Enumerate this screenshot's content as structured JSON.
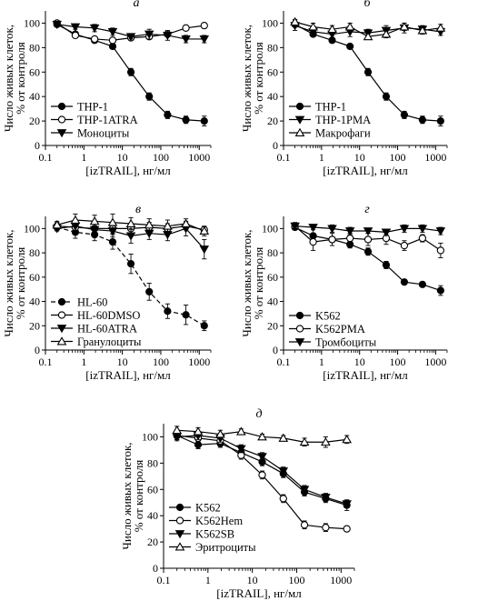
{
  "chart_data": [
    {
      "type": "line",
      "panel_letter": "а",
      "xlabel": "[izTRAIL], нг/мл",
      "ylabel": "Число живых клеток, % от контроля",
      "xscale": "log",
      "xlim": [
        0.1,
        2000
      ],
      "ylim": [
        0,
        110
      ],
      "xticks": [
        "0.1",
        "1",
        "10",
        "100",
        "1000"
      ],
      "yticks": [
        "0",
        "20",
        "40",
        "60",
        "80",
        "100"
      ],
      "legend_position": "bottom-left",
      "x": [
        0.2,
        0.6,
        1.9,
        5.6,
        16.7,
        50,
        150,
        450,
        1350
      ],
      "series": [
        {
          "name": "THP-1",
          "marker": "circle-filled",
          "dashed": false,
          "values": [
            99,
            91,
            86,
            81,
            60,
            40,
            25,
            21,
            20
          ],
          "errors": [
            1.5,
            2,
            2,
            2,
            3,
            3,
            3,
            3,
            4
          ]
        },
        {
          "name": "THP-1ATRA",
          "marker": "circle-open",
          "dashed": false,
          "values": [
            100,
            90,
            87,
            86,
            88,
            89,
            91,
            96,
            98
          ],
          "errors": [
            1,
            1.5,
            1.5,
            1.5,
            2,
            2,
            2,
            1.5,
            1
          ]
        },
        {
          "name": "Моноциты",
          "marker": "triangle-down-filled",
          "dashed": false,
          "values": [
            99,
            97,
            96,
            93,
            89,
            91,
            90,
            87,
            87
          ],
          "errors": [
            1,
            2,
            3,
            3,
            2,
            4,
            4,
            3,
            3
          ]
        }
      ]
    },
    {
      "type": "line",
      "panel_letter": "б",
      "xlabel": "[izTRAIL], нг/мл",
      "ylabel": "Число живых клеток, % от контроля",
      "xscale": "log",
      "xlim": [
        0.1,
        2000
      ],
      "ylim": [
        0,
        110
      ],
      "xticks": [
        "0.1",
        "1",
        "10",
        "100",
        "1000"
      ],
      "yticks": [
        "0",
        "20",
        "40",
        "60",
        "80",
        "100"
      ],
      "legend_position": "bottom-left",
      "x": [
        0.2,
        0.6,
        1.9,
        5.6,
        16.7,
        50,
        150,
        450,
        1350
      ],
      "series": [
        {
          "name": "THP-1",
          "marker": "circle-filled",
          "dashed": false,
          "values": [
            99,
            91,
            86,
            81,
            60,
            40,
            25,
            21,
            20
          ],
          "errors": [
            2,
            2,
            2,
            2,
            3,
            3,
            3,
            3,
            4
          ]
        },
        {
          "name": "THP-1PMA",
          "marker": "triangle-down-filled",
          "dashed": false,
          "values": [
            98,
            93,
            91,
            93,
            92,
            94,
            96,
            95,
            93
          ],
          "errors": [
            4,
            3,
            3,
            4,
            3,
            4,
            4,
            3,
            3
          ]
        },
        {
          "name": "Макрофаги",
          "marker": "triangle-up-open",
          "dashed": false,
          "values": [
            101,
            97,
            95,
            97,
            89,
            91,
            97,
            94,
            96
          ],
          "errors": [
            2,
            3,
            3,
            3,
            2,
            3,
            3,
            3,
            3
          ]
        }
      ]
    },
    {
      "type": "line",
      "panel_letter": "в",
      "xlabel": "[izTRAIL], нг/мл",
      "ylabel": "Число живых клеток, % от контроля",
      "xscale": "log",
      "xlim": [
        0.1,
        2000
      ],
      "ylim": [
        0,
        110
      ],
      "xticks": [
        "0.1",
        "1",
        "10",
        "100",
        "1000"
      ],
      "yticks": [
        "0",
        "20",
        "40",
        "60",
        "80",
        "100"
      ],
      "legend_position": "bottom-left",
      "x": [
        0.2,
        0.6,
        1.9,
        5.6,
        16.7,
        50,
        150,
        450,
        1350
      ],
      "series": [
        {
          "name": "HL-60",
          "marker": "circle-filled",
          "dashed": true,
          "values": [
            101,
            97,
            95,
            89,
            71,
            48,
            32,
            29,
            20
          ],
          "errors": [
            2,
            5,
            5,
            6,
            8,
            7,
            6,
            8,
            4
          ]
        },
        {
          "name": "HL-60DMSO",
          "marker": "circle-open",
          "dashed": false,
          "values": [
            102,
            101,
            100,
            100,
            100,
            101,
            100,
            102,
            99
          ],
          "errors": [
            3,
            6,
            6,
            4,
            4,
            4,
            4,
            3,
            2
          ]
        },
        {
          "name": "HL-60ATRA",
          "marker": "triangle-down-filled",
          "dashed": false,
          "values": [
            100,
            102,
            99,
            98,
            94,
            96,
            95,
            100,
            83
          ],
          "errors": [
            2,
            5,
            5,
            5,
            6,
            5,
            5,
            6,
            8
          ]
        },
        {
          "name": "Гранулоциты",
          "marker": "triangle-up-open",
          "dashed": false,
          "values": [
            103,
            107,
            106,
            105,
            104,
            103,
            102,
            104,
            98
          ],
          "errors": [
            3,
            5,
            5,
            7,
            5,
            5,
            5,
            4,
            4
          ]
        }
      ]
    },
    {
      "type": "line",
      "panel_letter": "г",
      "xlabel": "[izTRAIL], нг/мл",
      "ylabel": "Число живых клеток, % от контроля",
      "xscale": "log",
      "xlim": [
        0.1,
        2000
      ],
      "ylim": [
        0,
        110
      ],
      "xticks": [
        "0.1",
        "1",
        "10",
        "100",
        "1000"
      ],
      "yticks": [
        "0",
        "20",
        "40",
        "60",
        "80",
        "100"
      ],
      "legend_position": "bottom-left",
      "x": [
        0.2,
        0.6,
        1.9,
        5.6,
        16.7,
        50,
        150,
        450,
        1350
      ],
      "series": [
        {
          "name": "K562",
          "marker": "circle-filled",
          "dashed": false,
          "values": [
            101,
            94,
            91,
            87,
            81,
            70,
            56,
            54,
            49
          ],
          "errors": [
            2,
            2,
            2,
            3,
            3,
            3,
            2,
            2,
            4
          ]
        },
        {
          "name": "K562PMA",
          "marker": "circle-open",
          "dashed": false,
          "values": [
            102,
            89,
            91,
            92,
            91,
            92,
            86,
            92,
            82
          ],
          "errors": [
            3,
            7,
            5,
            4,
            5,
            5,
            4,
            3,
            6
          ]
        },
        {
          "name": "Тромбоциты",
          "marker": "triangle-down-filled",
          "dashed": false,
          "values": [
            102,
            101,
            100,
            98,
            98,
            97,
            100,
            100,
            98
          ],
          "errors": [
            2,
            2,
            3,
            3,
            2,
            2,
            3,
            3,
            3
          ]
        }
      ]
    },
    {
      "type": "line",
      "panel_letter": "д",
      "xlabel": "[izTRAIL], нг/мл",
      "ylabel": "Число живых клеток, % от контроля",
      "xscale": "log",
      "xlim": [
        0.1,
        2000
      ],
      "ylim": [
        0,
        110
      ],
      "xticks": [
        "0.1",
        "1",
        "10",
        "100",
        "1000"
      ],
      "yticks": [
        "0",
        "20",
        "40",
        "60",
        "80",
        "100"
      ],
      "legend_position": "bottom-left",
      "x": [
        0.2,
        0.6,
        1.9,
        5.6,
        16.7,
        50,
        150,
        450,
        1350
      ],
      "series": [
        {
          "name": "K562",
          "marker": "circle-filled",
          "dashed": false,
          "values": [
            101,
            94,
            95,
            88,
            81,
            72,
            58,
            53,
            48
          ],
          "errors": [
            3,
            3,
            3,
            3,
            3,
            3,
            3,
            3,
            4
          ]
        },
        {
          "name": "K562Hem",
          "marker": "circle-open",
          "dashed": false,
          "values": [
            101,
            99,
            97,
            86,
            71,
            53,
            33,
            31,
            30
          ],
          "errors": [
            3,
            3,
            3,
            3,
            3,
            3,
            3,
            3,
            2
          ]
        },
        {
          "name": "K562SB",
          "marker": "triangle-down-filled",
          "dashed": false,
          "values": [
            100,
            101,
            99,
            91,
            85,
            74,
            60,
            54,
            49
          ],
          "errors": [
            3,
            3,
            3,
            3,
            3,
            3,
            3,
            3,
            3
          ]
        },
        {
          "name": "Эритроциты",
          "marker": "triangle-up-open",
          "dashed": false,
          "values": [
            105,
            104,
            102,
            104,
            100,
            99,
            96,
            96,
            98
          ],
          "errors": [
            3,
            3,
            3,
            2,
            2,
            2,
            3,
            4,
            3
          ]
        }
      ]
    }
  ]
}
